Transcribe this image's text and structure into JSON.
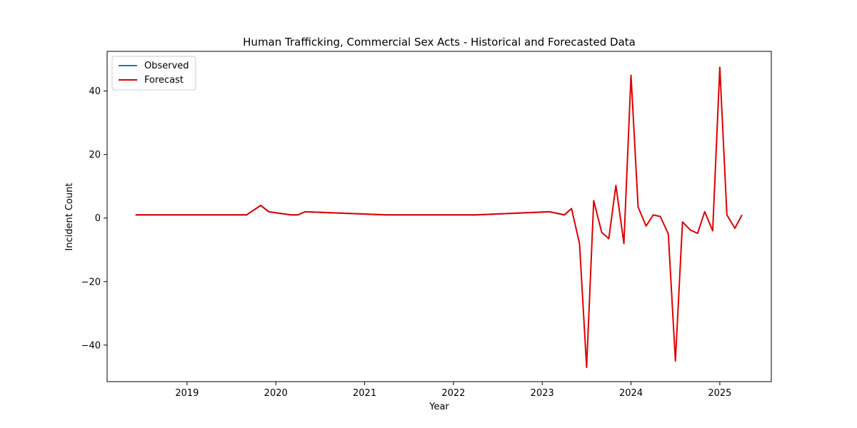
{
  "chart_data": {
    "type": "line",
    "title": "Human Trafficking, Commercial Sex Acts - Historical and Forecasted Data",
    "xlabel": "Year",
    "ylabel": "Incident Count",
    "xlim": [
      2018.1,
      2025.58
    ],
    "ylim": [
      -51.5,
      52.5
    ],
    "x_ticks": [
      2019,
      2020,
      2021,
      2022,
      2023,
      2024,
      2025
    ],
    "y_ticks": [
      -40,
      -20,
      0,
      20,
      40
    ],
    "y_tick_labels": [
      "−40",
      "−20",
      "0",
      "20",
      "40"
    ],
    "grid": false,
    "legend": {
      "placement": "top-left",
      "entries": [
        "Observed",
        "Forecast"
      ]
    },
    "series": [
      {
        "name": "Observed",
        "color": "#1f77b4",
        "points": [
          [
            2018.42,
            1
          ],
          [
            2019.67,
            1
          ],
          [
            2019.83,
            4
          ],
          [
            2019.92,
            2
          ],
          [
            2020.17,
            1
          ],
          [
            2020.25,
            1
          ],
          [
            2020.33,
            2
          ],
          [
            2021.25,
            1
          ],
          [
            2022.25,
            1
          ],
          [
            2023.08,
            2
          ],
          [
            2023.25,
            1
          ],
          [
            2023.33,
            3
          ]
        ]
      },
      {
        "name": "Forecast",
        "color": "#e00000",
        "points": [
          [
            2018.42,
            1
          ],
          [
            2019.67,
            1
          ],
          [
            2019.83,
            4
          ],
          [
            2019.92,
            2
          ],
          [
            2020.17,
            1
          ],
          [
            2020.25,
            1
          ],
          [
            2020.33,
            2
          ],
          [
            2021.25,
            1
          ],
          [
            2022.25,
            1
          ],
          [
            2023.08,
            2
          ],
          [
            2023.25,
            1
          ],
          [
            2023.33,
            3
          ],
          [
            2023.42,
            -8
          ],
          [
            2023.5,
            -47
          ],
          [
            2023.58,
            5.5
          ],
          [
            2023.67,
            -4.5
          ],
          [
            2023.75,
            -6.5
          ],
          [
            2023.83,
            10.3
          ],
          [
            2023.92,
            -8
          ],
          [
            2024.0,
            45
          ],
          [
            2024.08,
            3.5
          ],
          [
            2024.17,
            -2.5
          ],
          [
            2024.25,
            1
          ],
          [
            2024.33,
            0.5
          ],
          [
            2024.42,
            -5
          ],
          [
            2024.5,
            -45
          ],
          [
            2024.58,
            -1.2
          ],
          [
            2024.67,
            -3.8
          ],
          [
            2024.75,
            -4.8
          ],
          [
            2024.83,
            2
          ],
          [
            2024.92,
            -4
          ],
          [
            2025.0,
            47.5
          ],
          [
            2025.08,
            1
          ],
          [
            2025.17,
            -3.2
          ],
          [
            2025.25,
            1
          ]
        ]
      }
    ]
  }
}
